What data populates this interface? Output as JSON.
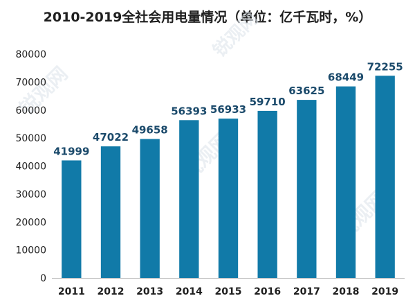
{
  "chart_data": {
    "type": "bar",
    "title": "2010-2019全社会用电量情况（单位：亿千瓦时，%）",
    "categories": [
      "2011",
      "2012",
      "2013",
      "2014",
      "2015",
      "2016",
      "2017",
      "2018",
      "2019"
    ],
    "series": [
      {
        "values": [
          41999,
          47022,
          49658,
          56393,
          56933,
          59710,
          63625,
          68449,
          72255
        ]
      }
    ],
    "ylim": [
      0,
      80000
    ],
    "yticks": [
      0,
      10000,
      20000,
      30000,
      40000,
      50000,
      60000,
      70000,
      80000
    ],
    "xlabel": "",
    "ylabel": "",
    "grid": false,
    "legend": "none",
    "data_labels": true
  },
  "colors": {
    "bar": "#117aa8",
    "data_label": "#1b4a6b",
    "axis_text": "#1f1f1f",
    "axis_line": "#bfbfbf"
  },
  "watermark": {
    "text": "锐观网",
    "subtext": "WWW.REPORTRC.COM"
  }
}
